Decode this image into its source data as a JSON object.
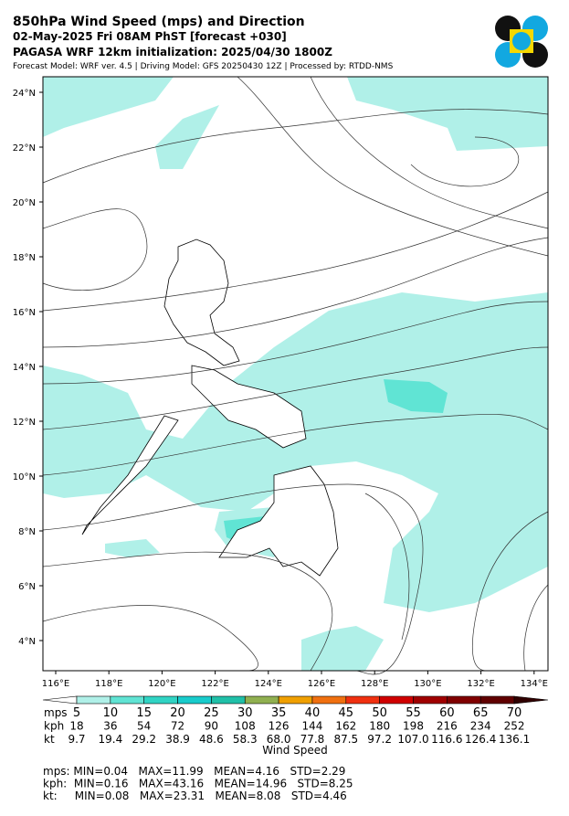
{
  "header": {
    "title": "850hPa Wind Speed (mps) and Direction",
    "date_line": "02-May-2025 Fri 08AM PhST [forecast +030]",
    "init_line": "PAGASA WRF 12km initialization: 2025/04/30 1800Z",
    "model_line": "Forecast Model: WRF ver. 4.5 | Driving Model: GFS 20250430 12Z | Processed by: RTDD-NMS"
  },
  "map": {
    "lon_labels": [
      "116°E",
      "118°E",
      "120°E",
      "122°E",
      "124°E",
      "126°E",
      "128°E",
      "130°E",
      "132°E",
      "134°E"
    ],
    "lat_labels": [
      "24°N",
      "22°N",
      "20°N",
      "18°N",
      "16°N",
      "14°N",
      "12°N",
      "10°N",
      "8°N",
      "6°N",
      "4°N"
    ]
  },
  "colorbar": {
    "colors": [
      "#ffffff",
      "#b0f0e8",
      "#60e4d4",
      "#30d4c4",
      "#18cccc",
      "#20c0a8",
      "#90b050",
      "#f0a000",
      "#f07010",
      "#f03010",
      "#d00000",
      "#a00000",
      "#800000",
      "#600000",
      "#300000"
    ],
    "title": "Wind Speed",
    "row_names": [
      "mps",
      "kph",
      "kt"
    ],
    "mps": [
      "5",
      "10",
      "15",
      "20",
      "25",
      "30",
      "35",
      "40",
      "45",
      "50",
      "55",
      "60",
      "65",
      "70"
    ],
    "kph": [
      "18",
      "36",
      "54",
      "72",
      "90",
      "108",
      "126",
      "144",
      "162",
      "180",
      "198",
      "216",
      "234",
      "252"
    ],
    "kt": [
      "9.7",
      "19.4",
      "29.2",
      "38.9",
      "48.6",
      "58.3",
      "68.0",
      "77.8",
      "87.5",
      "97.2",
      "107.0",
      "116.6",
      "126.4",
      "136.1"
    ]
  },
  "stats": [
    "mps: MIN=0.04   MAX=11.99   MEAN=4.16   STD=2.29",
    "kph:  MIN=0.16   MAX=43.16   MEAN=14.96   STD=8.25",
    "kt:     MIN=0.08   MAX=23.31   MEAN=8.08   STD=4.46"
  ]
}
